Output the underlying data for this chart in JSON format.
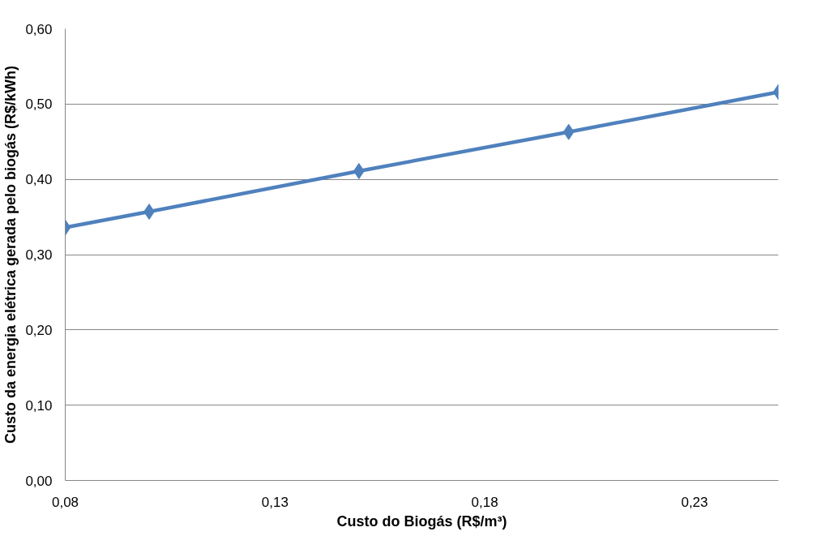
{
  "chart_data": {
    "type": "line",
    "xlabel": "Custo do Biogás (R$/m³)",
    "ylabel": "Custo da energia elétrica gerada pelo biogás (R$/kWh)",
    "x": [
      0.08,
      0.1,
      0.15,
      0.2,
      0.25
    ],
    "series": [
      {
        "color": "#4f81bd",
        "values": [
          0.336,
          0.357,
          0.411,
          0.463,
          0.516
        ]
      }
    ],
    "xlim": [
      0.08,
      0.25
    ],
    "xticks": [
      {
        "value": 0.08,
        "label": "0,08"
      },
      {
        "value": 0.13,
        "label": "0,13"
      },
      {
        "value": 0.18,
        "label": "0,18"
      },
      {
        "value": 0.23,
        "label": "0,23"
      }
    ],
    "ylim": [
      0,
      0.6
    ],
    "yticks": [
      {
        "value": 0,
        "label": "0,00"
      },
      {
        "value": 0.1,
        "label": "0,10"
      },
      {
        "value": 0.2,
        "label": "0,20"
      },
      {
        "value": 0.3,
        "label": "0,30"
      },
      {
        "value": 0.4,
        "label": "0,40"
      },
      {
        "value": 0.5,
        "label": "0,50"
      },
      {
        "value": 0.6,
        "label": "0,60"
      }
    ],
    "grid": "y",
    "marker": "diamond",
    "line_style": "solid"
  }
}
